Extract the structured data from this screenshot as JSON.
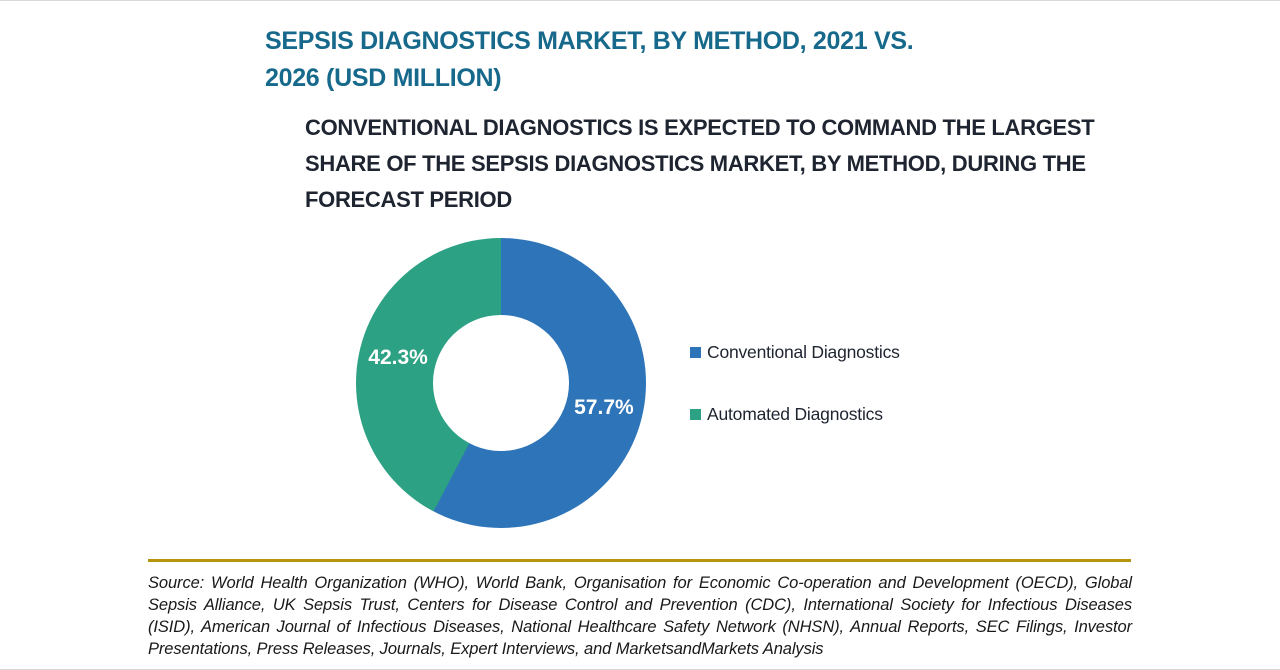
{
  "header": {
    "title": "SEPSIS DIAGNOSTICS MARKET, BY METHOD, 2021 VS. 2026 (USD MILLION)",
    "subtitle": "CONVENTIONAL DIAGNOSTICS IS EXPECTED TO COMMAND THE LARGEST SHARE OF THE SEPSIS DIAGNOSTICS MARKET, BY METHOD, DURING THE FORECAST PERIOD",
    "title_color": "#17698c",
    "subtitle_color": "#1e2430"
  },
  "chart_data": {
    "type": "pie",
    "donut": true,
    "title": "SEPSIS DIAGNOSTICS MARKET, BY METHOD, 2021 VS. 2026 (USD MILLION)",
    "categories": [
      "Conventional Diagnostics",
      "Automated Diagnostics"
    ],
    "values": [
      57.7,
      42.3
    ],
    "labels": [
      "57.7%",
      "42.3%"
    ],
    "colors": [
      "#2e74b8",
      "#2da184"
    ],
    "label_color": "#ffffff",
    "legend_position": "right",
    "start_angle_deg": 0,
    "direction": "clockwise"
  },
  "footer": {
    "rule_color": "#b6950d",
    "source": "Source: World Health Organization (WHO), World Bank, Organisation for Economic Co-operation and Development (OECD), Global Sepsis Alliance, UK Sepsis Trust, Centers for Disease Control and Prevention (CDC), International Society for Infectious Diseases (ISID), American Journal of Infectious Diseases, National Healthcare Safety Network (NHSN), Annual Reports, SEC Filings, Investor Presentations, Press Releases, Journals, Expert Interviews, and MarketsandMarkets Analysis"
  }
}
